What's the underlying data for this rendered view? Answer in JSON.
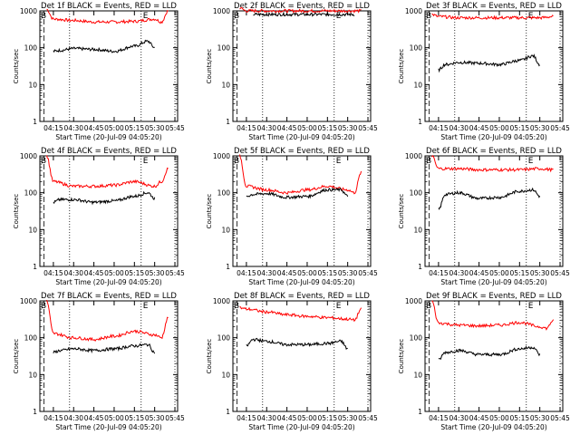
{
  "figure": {
    "description_title": "Det BLACK = Events, RED = LLD"
  },
  "chart_data": [
    {
      "type": "line",
      "title": "Det 1f BLACK = Events, RED = LLD",
      "xlabel": "Start Time (20-Jul-09 04:05:20)",
      "ylabel": "Counts/sec",
      "yscale": "log",
      "ylim": [
        1,
        1000
      ],
      "y_ticks": [
        "1",
        "10",
        "100",
        "1000"
      ],
      "x_ticks": [
        "04:15",
        "04:30",
        "04:45",
        "05:00",
        "05:15",
        "05:30",
        "05:45"
      ],
      "markers": {
        "B": "B",
        "E": "E"
      },
      "series": [
        {
          "name": "LLD",
          "color": "#ff0000",
          "x": [
            "04:10",
            "04:15",
            "04:30",
            "04:45",
            "05:00",
            "05:15",
            "05:30",
            "05:35",
            "05:40"
          ],
          "values": [
            1100,
            600,
            550,
            500,
            500,
            520,
            600,
            500,
            1000
          ]
        },
        {
          "name": "Events",
          "color": "#000000",
          "x": [
            "04:15",
            "04:20",
            "04:30",
            "04:45",
            "05:00",
            "05:15",
            "05:25",
            "05:30"
          ],
          "values": [
            80,
            85,
            95,
            90,
            80,
            110,
            150,
            100
          ]
        }
      ]
    },
    {
      "type": "line",
      "title": "Det 2f BLACK = Events, RED = LLD",
      "xlabel": "Start Time (20-Jul-09 04:05:20)",
      "ylabel": "Counts/sec",
      "yscale": "log",
      "ylim": [
        1,
        1000
      ],
      "y_ticks": [
        "1",
        "10",
        "100",
        "1000"
      ],
      "x_ticks": [
        "04:15",
        "04:30",
        "04:45",
        "05:00",
        "05:15",
        "05:30",
        "05:45"
      ],
      "markers": {
        "B": "B",
        "E": "E"
      },
      "series": [
        {
          "name": "LLD",
          "color": "#ff0000",
          "x": [
            "04:10",
            "04:15",
            "04:30",
            "04:45",
            "05:00",
            "05:15",
            "05:30",
            "05:40"
          ],
          "values": [
            1200,
            1000,
            1000,
            1000,
            1000,
            1000,
            1000,
            1000
          ]
        },
        {
          "name": "Events",
          "color": "#000000",
          "x": [
            "04:20",
            "04:30",
            "04:45",
            "05:00",
            "05:15",
            "05:30",
            "05:35"
          ],
          "values": [
            800,
            800,
            800,
            800,
            800,
            800,
            800
          ]
        }
      ]
    },
    {
      "type": "line",
      "title": "Det 3f BLACK = Events, RED = LLD",
      "xlabel": "Start Time (20-Jul-09 04:05:20)",
      "ylabel": "Counts/sec",
      "yscale": "log",
      "ylim": [
        1,
        1000
      ],
      "y_ticks": [
        "1",
        "10",
        "100",
        "1000"
      ],
      "x_ticks": [
        "04:15",
        "04:30",
        "04:45",
        "05:00",
        "05:15",
        "05:30",
        "05:45"
      ],
      "markers": {
        "B": "B",
        "E": "E"
      },
      "series": [
        {
          "name": "LLD",
          "color": "#ff0000",
          "x": [
            "04:10",
            "04:15",
            "04:30",
            "04:45",
            "05:00",
            "05:15",
            "05:30",
            "05:40"
          ],
          "values": [
            800,
            700,
            650,
            650,
            650,
            650,
            650,
            700
          ]
        },
        {
          "name": "Events",
          "color": "#000000",
          "x": [
            "04:15",
            "04:20",
            "04:30",
            "04:45",
            "05:00",
            "05:15",
            "05:25",
            "05:30"
          ],
          "values": [
            25,
            35,
            40,
            38,
            35,
            45,
            60,
            35
          ]
        }
      ]
    },
    {
      "type": "line",
      "title": "Det 4f BLACK = Events, RED = LLD",
      "xlabel": "Start Time (20-Jul-09 04:05:20)",
      "ylabel": "Counts/sec",
      "yscale": "log",
      "ylim": [
        1,
        1000
      ],
      "y_ticks": [
        "1",
        "10",
        "100",
        "1000"
      ],
      "x_ticks": [
        "04:15",
        "04:30",
        "04:45",
        "05:00",
        "05:15",
        "05:30",
        "05:45"
      ],
      "markers": {
        "B": "B",
        "E": "E"
      },
      "series": [
        {
          "name": "LLD",
          "color": "#ff0000",
          "x": [
            "04:10",
            "04:15",
            "04:30",
            "04:45",
            "05:00",
            "05:15",
            "05:30",
            "05:35",
            "05:40"
          ],
          "values": [
            1000,
            200,
            150,
            150,
            160,
            200,
            150,
            200,
            450
          ]
        },
        {
          "name": "Events",
          "color": "#000000",
          "x": [
            "04:15",
            "04:20",
            "04:30",
            "04:45",
            "05:00",
            "05:15",
            "05:25",
            "05:30"
          ],
          "values": [
            55,
            65,
            65,
            55,
            60,
            80,
            100,
            70
          ]
        }
      ]
    },
    {
      "type": "line",
      "title": "Det 5f BLACK = Events, RED = LLD",
      "xlabel": "Start Time (20-Jul-09 04:05:20)",
      "ylabel": "Counts/sec",
      "yscale": "log",
      "ylim": [
        1,
        1000
      ],
      "y_ticks": [
        "1",
        "10",
        "100",
        "1000"
      ],
      "x_ticks": [
        "04:15",
        "04:30",
        "04:45",
        "05:00",
        "05:15",
        "05:30",
        "05:45"
      ],
      "markers": {
        "B": "B",
        "E": "E"
      },
      "series": [
        {
          "name": "LLD",
          "color": "#ff0000",
          "x": [
            "04:10",
            "04:15",
            "04:30",
            "04:45",
            "05:00",
            "05:15",
            "05:30",
            "05:35",
            "05:40"
          ],
          "values": [
            1000,
            150,
            120,
            100,
            120,
            150,
            120,
            100,
            350
          ]
        },
        {
          "name": "Events",
          "color": "#000000",
          "x": [
            "04:15",
            "04:20",
            "04:30",
            "04:45",
            "05:00",
            "05:15",
            "05:25",
            "05:30"
          ],
          "values": [
            80,
            90,
            95,
            75,
            80,
            120,
            120,
            80
          ]
        }
      ]
    },
    {
      "type": "line",
      "title": "Det 6f BLACK = Events, RED = LLD",
      "xlabel": "Start Time (20-Jul-09 04:05:20)",
      "ylabel": "Counts/sec",
      "yscale": "log",
      "ylim": [
        1,
        1000
      ],
      "y_ticks": [
        "1",
        "10",
        "100",
        "1000"
      ],
      "x_ticks": [
        "04:15",
        "04:30",
        "04:45",
        "05:00",
        "05:15",
        "05:30",
        "05:45"
      ],
      "markers": {
        "B": "B",
        "E": "E"
      },
      "series": [
        {
          "name": "LLD",
          "color": "#ff0000",
          "x": [
            "04:10",
            "04:15",
            "04:30",
            "04:45",
            "05:00",
            "05:15",
            "05:30",
            "05:40"
          ],
          "values": [
            1000,
            450,
            450,
            420,
            420,
            420,
            450,
            420
          ]
        },
        {
          "name": "Events",
          "color": "#000000",
          "x": [
            "04:15",
            "04:20",
            "04:30",
            "04:45",
            "05:00",
            "05:15",
            "05:25",
            "05:30"
          ],
          "values": [
            35,
            90,
            100,
            70,
            75,
            110,
            120,
            80
          ]
        }
      ]
    },
    {
      "type": "line",
      "title": "Det 7f BLACK = Events, RED = LLD",
      "xlabel": "Start Time (20-Jul-09 04:05:20)",
      "ylabel": "Counts/sec",
      "yscale": "log",
      "ylim": [
        1,
        1000
      ],
      "y_ticks": [
        "1",
        "10",
        "100",
        "1000"
      ],
      "x_ticks": [
        "04:15",
        "04:30",
        "04:45",
        "05:00",
        "05:15",
        "05:30",
        "05:45"
      ],
      "markers": {
        "B": "B",
        "E": "E"
      },
      "series": [
        {
          "name": "LLD",
          "color": "#ff0000",
          "x": [
            "04:10",
            "04:15",
            "04:30",
            "04:45",
            "05:00",
            "05:15",
            "05:30",
            "05:35",
            "05:40"
          ],
          "values": [
            1000,
            130,
            100,
            90,
            110,
            150,
            120,
            100,
            350
          ]
        },
        {
          "name": "Events",
          "color": "#000000",
          "x": [
            "04:15",
            "04:20",
            "04:30",
            "04:45",
            "05:00",
            "05:15",
            "05:25",
            "05:30"
          ],
          "values": [
            40,
            45,
            50,
            45,
            50,
            60,
            65,
            40
          ]
        }
      ]
    },
    {
      "type": "line",
      "title": "Det 8f BLACK = Events, RED = LLD",
      "xlabel": "Start Time (20-Jul-09 04:05:20)",
      "ylabel": "Counts/sec",
      "yscale": "log",
      "ylim": [
        1,
        1000
      ],
      "y_ticks": [
        "1",
        "10",
        "100",
        "1000"
      ],
      "x_ticks": [
        "04:15",
        "04:30",
        "04:45",
        "05:00",
        "05:15",
        "05:30",
        "05:45"
      ],
      "markers": {
        "B": "B",
        "E": "E"
      },
      "series": [
        {
          "name": "LLD",
          "color": "#ff0000",
          "x": [
            "04:10",
            "04:15",
            "04:30",
            "04:45",
            "05:00",
            "05:15",
            "05:30",
            "05:35",
            "05:40"
          ],
          "values": [
            650,
            600,
            500,
            420,
            380,
            350,
            320,
            300,
            600
          ]
        },
        {
          "name": "Events",
          "color": "#000000",
          "x": [
            "04:15",
            "04:20",
            "04:30",
            "04:45",
            "05:00",
            "05:15",
            "05:25",
            "05:30"
          ],
          "values": [
            60,
            90,
            80,
            65,
            65,
            70,
            80,
            50
          ]
        }
      ]
    },
    {
      "type": "line",
      "title": "Det 9f BLACK = Events, RED = LLD",
      "xlabel": "Start Time (20-Jul-09 04:05:20)",
      "ylabel": "Counts/sec",
      "yscale": "log",
      "ylim": [
        1,
        1000
      ],
      "y_ticks": [
        "1",
        "10",
        "100",
        "1000"
      ],
      "x_ticks": [
        "04:15",
        "04:30",
        "04:45",
        "05:00",
        "05:15",
        "05:30",
        "05:45"
      ],
      "markers": {
        "B": "B",
        "E": "E"
      },
      "series": [
        {
          "name": "LLD",
          "color": "#ff0000",
          "x": [
            "04:10",
            "04:15",
            "04:30",
            "04:45",
            "05:00",
            "05:15",
            "05:30",
            "05:35",
            "05:40"
          ],
          "values": [
            1000,
            250,
            220,
            210,
            220,
            260,
            200,
            180,
            300
          ]
        },
        {
          "name": "Events",
          "color": "#000000",
          "x": [
            "04:15",
            "04:20",
            "04:30",
            "04:45",
            "05:00",
            "05:15",
            "05:25",
            "05:30"
          ],
          "values": [
            25,
            40,
            45,
            35,
            35,
            50,
            55,
            35
          ]
        }
      ]
    }
  ]
}
